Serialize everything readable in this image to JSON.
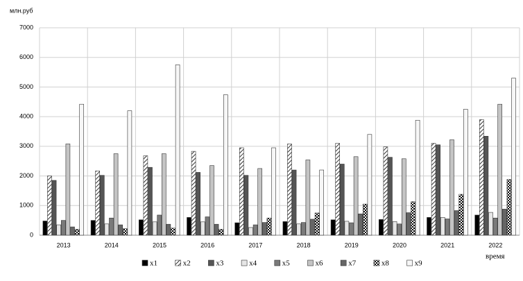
{
  "chart_data": {
    "type": "bar",
    "y_axis_label": "млн.руб",
    "x_axis_label": "время",
    "categories": [
      "2013",
      "2014",
      "2015",
      "2016",
      "2017",
      "2018",
      "2019",
      "2020",
      "2021",
      "2022"
    ],
    "series": [
      {
        "name": "x1",
        "color": "#000000",
        "values": [
          480,
          500,
          520,
          600,
          420,
          460,
          520,
          530,
          600,
          680
        ]
      },
      {
        "name": "x2",
        "color": "#ffffff",
        "pattern": "hatch",
        "values": [
          2000,
          2170,
          2680,
          2830,
          2950,
          3080,
          3100,
          2980,
          3100,
          3900
        ]
      },
      {
        "name": "x3",
        "color": "#555555",
        "values": [
          1850,
          2020,
          2290,
          2120,
          2020,
          2200,
          2400,
          2630,
          3050,
          3340
        ]
      },
      {
        "name": "x4",
        "color": "#e6e6e6",
        "values": [
          350,
          380,
          450,
          450,
          260,
          380,
          470,
          460,
          600,
          770
        ]
      },
      {
        "name": "x5",
        "color": "#7a7a7a",
        "values": [
          500,
          580,
          680,
          620,
          350,
          430,
          420,
          380,
          550,
          580
        ]
      },
      {
        "name": "x6",
        "color": "#c4c4c4",
        "values": [
          3080,
          2750,
          2750,
          2350,
          2250,
          2540,
          2650,
          2580,
          3220,
          4420
        ]
      },
      {
        "name": "x7",
        "color": "#666666",
        "values": [
          280,
          350,
          370,
          370,
          430,
          540,
          720,
          760,
          830,
          880
        ]
      },
      {
        "name": "x8",
        "color": "#ffffff",
        "pattern": "checker",
        "values": [
          200,
          220,
          240,
          200,
          580,
          750,
          1050,
          1130,
          1380,
          1880
        ]
      },
      {
        "name": "x9",
        "color": "#f7f7f7",
        "values": [
          4420,
          4200,
          5750,
          4740,
          2950,
          2200,
          3400,
          3880,
          4250,
          5300
        ]
      }
    ],
    "ylim": [
      0,
      7000
    ],
    "yticks": [
      0,
      1000,
      2000,
      3000,
      4000,
      5000,
      6000,
      7000
    ],
    "grid": true,
    "legend": "bottom"
  }
}
